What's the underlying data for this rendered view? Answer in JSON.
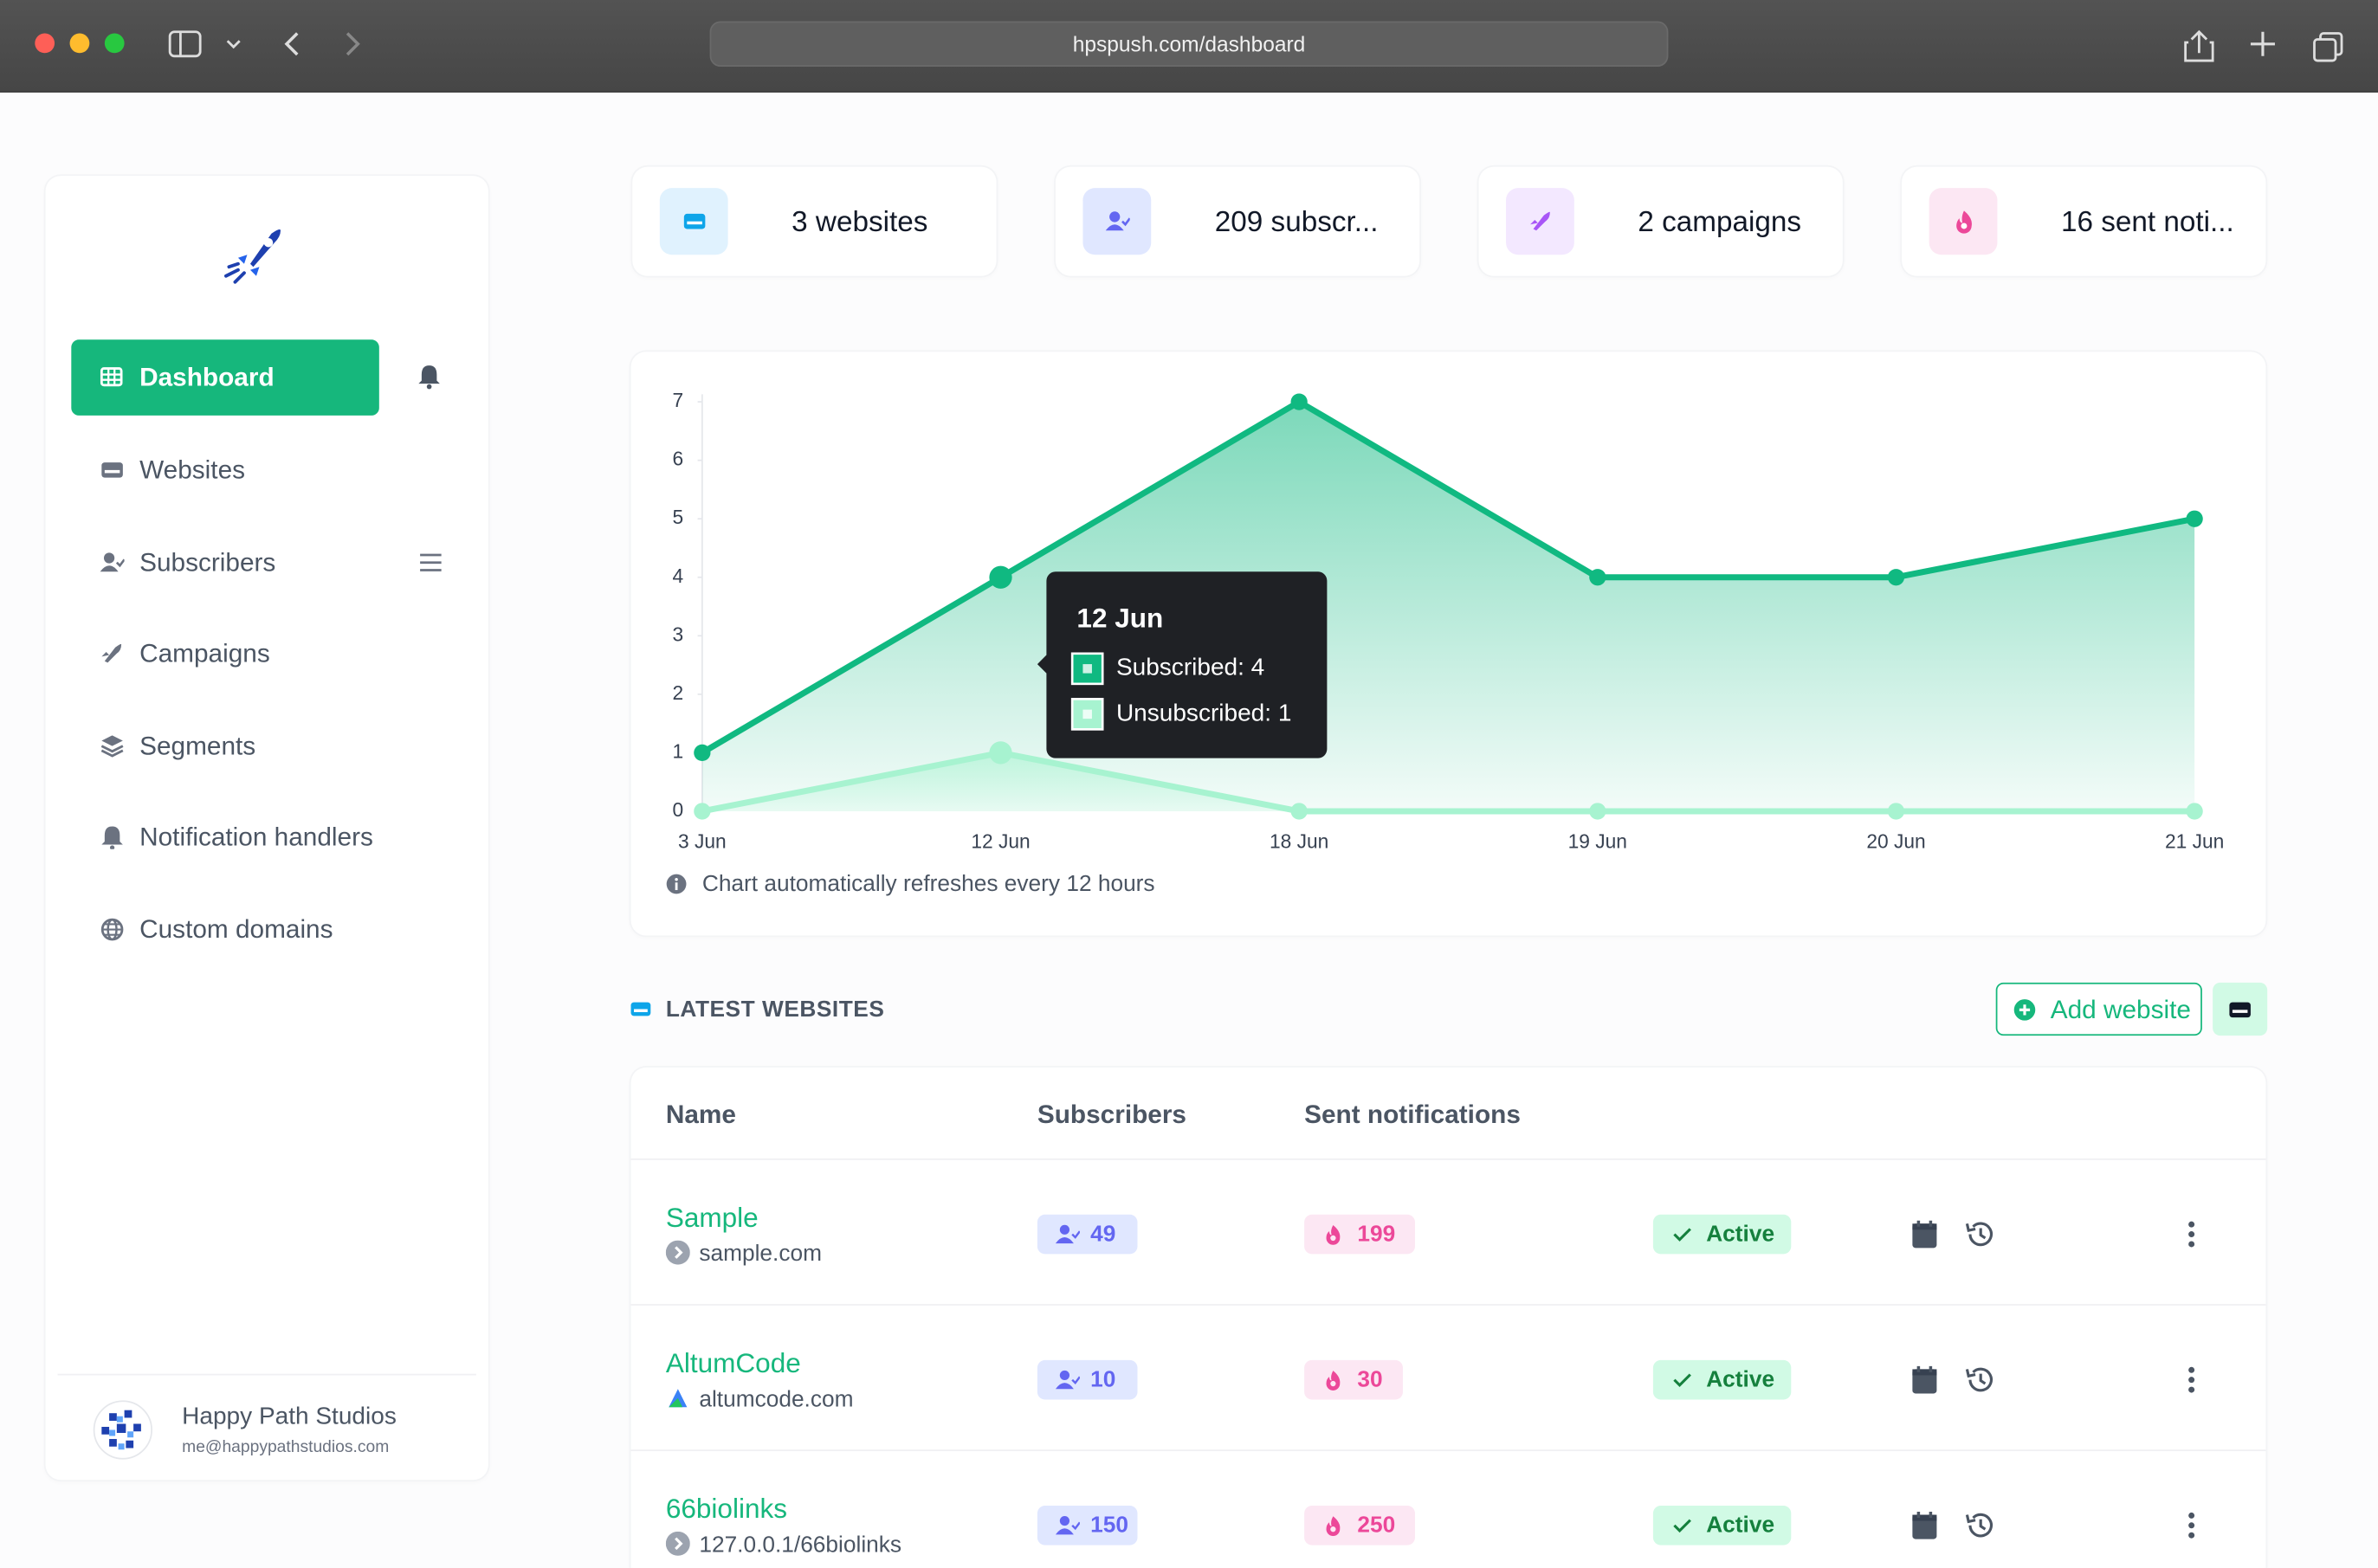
{
  "browser": {
    "url": "hpspush.com/dashboard"
  },
  "sidebar": {
    "nav": [
      "Dashboard",
      "Websites",
      "Subscribers",
      "Campaigns",
      "Segments",
      "Notification handlers",
      "Custom domains"
    ],
    "user": {
      "name": "Happy Path Studios",
      "email": "me@happypathstudios.com"
    }
  },
  "stats": [
    "3 websites",
    "209 subscr...",
    "2 campaigns",
    "16 sent noti..."
  ],
  "chart": {
    "type": "line",
    "categories": [
      "3 Jun",
      "12 Jun",
      "18 Jun",
      "19 Jun",
      "20 Jun",
      "21 Jun"
    ],
    "series": [
      {
        "name": "Subscribed",
        "color": "#10b981",
        "values": [
          1,
          4,
          7,
          4,
          4,
          5
        ]
      },
      {
        "name": "Unsubscribed",
        "color": "#a7f3d0",
        "values": [
          0,
          1,
          0,
          0,
          0,
          0
        ]
      }
    ],
    "ylim": [
      0,
      7
    ],
    "yticks": [
      0,
      1,
      2,
      3,
      4,
      5,
      6,
      7
    ],
    "tooltip": {
      "title": "12 Jun",
      "lines": [
        "Subscribed: 4",
        "Unsubscribed: 1"
      ]
    },
    "note": "Chart automatically refreshes every 12 hours"
  },
  "latest": {
    "title": "LATEST WEBSITES",
    "add_button": "Add website",
    "columns": [
      "Name",
      "Subscribers",
      "Sent notifications"
    ],
    "rows": [
      {
        "name": "Sample",
        "domain": "sample.com",
        "subscribers": 49,
        "sent": 199,
        "status": "Active"
      },
      {
        "name": "AltumCode",
        "domain": "altumcode.com",
        "subscribers": 10,
        "sent": 30,
        "status": "Active"
      },
      {
        "name": "66biolinks",
        "domain": "127.0.0.1/66biolinks",
        "subscribers": 150,
        "sent": 250,
        "status": "Active"
      }
    ]
  }
}
